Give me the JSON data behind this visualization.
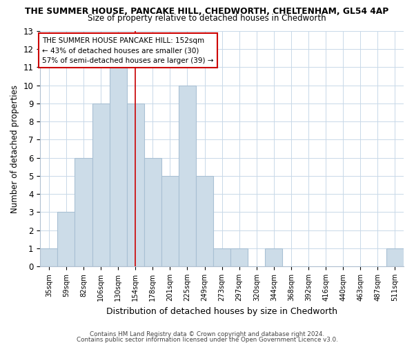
{
  "title": "THE SUMMER HOUSE, PANCAKE HILL, CHEDWORTH, CHELTENHAM, GL54 4AP",
  "subtitle": "Size of property relative to detached houses in Chedworth",
  "xlabel": "Distribution of detached houses by size in Chedworth",
  "ylabel": "Number of detached properties",
  "bar_color": "#ccdce8",
  "bar_edge_color": "#a8c0d4",
  "bin_labels": [
    "35sqm",
    "59sqm",
    "82sqm",
    "106sqm",
    "130sqm",
    "154sqm",
    "178sqm",
    "201sqm",
    "225sqm",
    "249sqm",
    "273sqm",
    "297sqm",
    "320sqm",
    "344sqm",
    "368sqm",
    "392sqm",
    "416sqm",
    "440sqm",
    "463sqm",
    "487sqm",
    "511sqm"
  ],
  "bar_heights": [
    1,
    3,
    6,
    9,
    11,
    9,
    6,
    5,
    10,
    5,
    1,
    1,
    0,
    1,
    0,
    0,
    0,
    0,
    0,
    0,
    1
  ],
  "ylim": [
    0,
    13
  ],
  "yticks": [
    0,
    1,
    2,
    3,
    4,
    5,
    6,
    7,
    8,
    9,
    10,
    11,
    12,
    13
  ],
  "vline_x": 5,
  "vline_color": "#cc0000",
  "annotation_text": "THE SUMMER HOUSE PANCAKE HILL: 152sqm\n← 43% of detached houses are smaller (30)\n57% of semi-detached houses are larger (39) →",
  "annotation_box_color": "white",
  "annotation_box_edge": "#cc0000",
  "footnote1": "Contains HM Land Registry data © Crown copyright and database right 2024.",
  "footnote2": "Contains public sector information licensed under the Open Government Licence v3.0.",
  "background_color": "white",
  "grid_color": "#c8d8e8"
}
